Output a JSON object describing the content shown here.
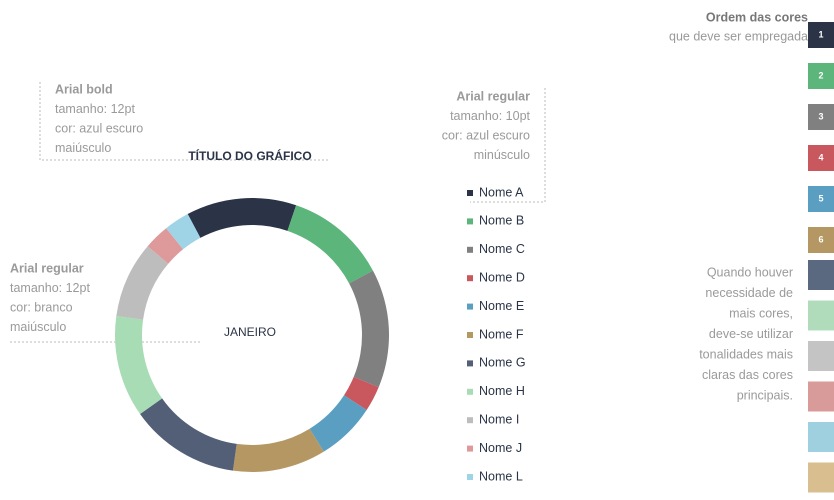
{
  "chart_data": {
    "type": "donut",
    "title": "TÍTULO DO GRÁFICO",
    "center_label": "JANEIRO",
    "categories": [
      "Nome A",
      "Nome B",
      "Nome C",
      "Nome D",
      "Nome E",
      "Nome F",
      "Nome G",
      "Nome H",
      "Nome I",
      "Nome J",
      "Nome L"
    ],
    "values": [
      13,
      12,
      14,
      3,
      7,
      11,
      13,
      12,
      9,
      3,
      3
    ],
    "colors": [
      "#2b3447",
      "#5cb57a",
      "#808080",
      "#c8585e",
      "#5a9fc2",
      "#b59763",
      "#525f77",
      "#a8dcb5",
      "#bdbdbd",
      "#de9a9a",
      "#9fd3e6"
    ]
  },
  "annotations": [
    {
      "lines": [
        "Arial bold",
        "tamanho: 12pt",
        "cor: azul escuro",
        "maiúsculo"
      ]
    },
    {
      "lines": [
        "Arial regular",
        "tamanho: 10pt",
        "cor: azul escuro",
        "minúsculo"
      ]
    },
    {
      "lines": [
        "Arial regular",
        "tamanho: 12pt",
        "cor: branco",
        "maiúsculo"
      ]
    }
  ],
  "color_order": {
    "title": "Ordem das cores",
    "subtitle": "que deve ser empregada",
    "swatches": [
      {
        "label": "1",
        "color": "#2b3447"
      },
      {
        "label": "2",
        "color": "#5cb57a"
      },
      {
        "label": "3",
        "color": "#808080"
      },
      {
        "label": "4",
        "color": "#c8585e"
      },
      {
        "label": "5",
        "color": "#5a9fc2"
      },
      {
        "label": "6",
        "color": "#b59763"
      }
    ],
    "note_lines": [
      "Quando houver",
      "necessidade de",
      "mais cores,",
      "deve-se utilizar",
      "tonalidades mais",
      "claras das cores",
      "principais."
    ],
    "light_colors": [
      "#5a6880",
      "#b0dcbc",
      "#c4c4c4",
      "#d99a9a",
      "#9fd0e0",
      "#d9bf8f"
    ]
  }
}
